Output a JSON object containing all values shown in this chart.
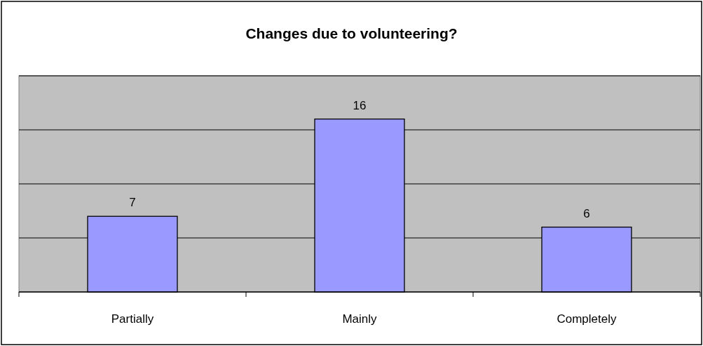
{
  "chart_data": {
    "type": "bar",
    "title": "Changes due to volunteering?",
    "categories": [
      "Partially",
      "Mainly",
      "Completely"
    ],
    "values": [
      7,
      16,
      6
    ],
    "color": "#9999ff",
    "ylim": [
      0,
      20
    ],
    "yticks": [
      {
        "value": 0,
        "label": null
      },
      {
        "value": 5,
        "label": null
      },
      {
        "value": 10,
        "label": null
      },
      {
        "value": 15,
        "label": null
      },
      {
        "value": 20,
        "label": null
      }
    ],
    "grid": "y",
    "tick_labels": "x",
    "data_labels": true
  }
}
